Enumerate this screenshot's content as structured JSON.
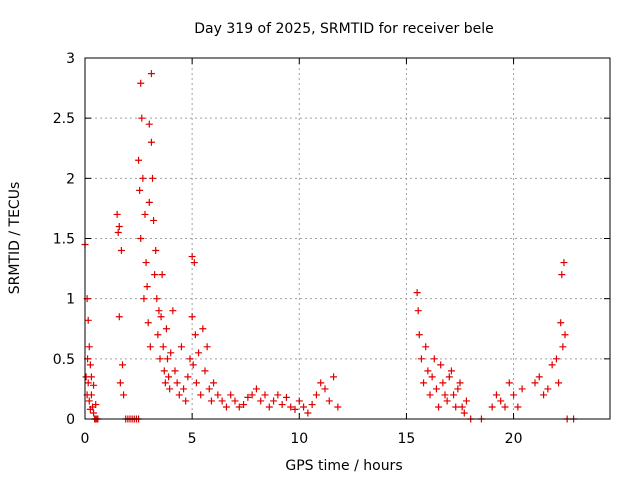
{
  "chart_data": {
    "type": "scatter",
    "title": "Day 319 of 2025, SRMTID for receiver bele",
    "xlabel": "GPS time / hours",
    "ylabel": "SRMTID / TECUs",
    "xlim": [
      0,
      24.5
    ],
    "ylim": [
      0,
      3
    ],
    "xticks": [
      0,
      5,
      10,
      15,
      20
    ],
    "xtick_labels": [
      "0",
      "5",
      "10",
      "15",
      "20"
    ],
    "yticks": [
      0,
      0.5,
      1,
      1.5,
      2,
      2.5,
      3
    ],
    "ytick_labels": [
      "0",
      "0.5",
      "1",
      "1.5",
      "2",
      "2.5",
      "3"
    ],
    "grid": true,
    "marker": "+",
    "color": "#e00000",
    "series": [
      {
        "name": "SRMTID",
        "x": [
          0.0,
          0.05,
          0.1,
          0.1,
          0.12,
          0.15,
          0.15,
          0.2,
          0.2,
          0.25,
          0.25,
          0.3,
          0.3,
          0.35,
          0.4,
          0.4,
          0.45,
          0.5,
          0.5,
          0.55,
          0.6,
          1.5,
          1.55,
          1.6,
          1.6,
          1.65,
          1.7,
          1.75,
          1.8,
          1.9,
          2.0,
          2.1,
          2.2,
          2.3,
          2.4,
          2.5,
          2.5,
          2.55,
          2.6,
          2.6,
          2.65,
          2.7,
          2.75,
          2.8,
          2.85,
          2.9,
          2.95,
          3.0,
          3.0,
          3.05,
          3.1,
          3.1,
          3.15,
          3.2,
          3.25,
          3.3,
          3.35,
          3.4,
          3.45,
          3.5,
          3.55,
          3.6,
          3.65,
          3.7,
          3.75,
          3.8,
          3.85,
          3.9,
          3.95,
          4.0,
          4.1,
          4.2,
          4.3,
          4.4,
          4.5,
          4.6,
          4.7,
          4.8,
          4.9,
          5.0,
          5.0,
          5.05,
          5.1,
          5.15,
          5.2,
          5.3,
          5.4,
          5.5,
          5.6,
          5.7,
          5.8,
          5.9,
          6.0,
          6.2,
          6.4,
          6.6,
          6.8,
          7.0,
          7.2,
          7.4,
          7.6,
          7.8,
          8.0,
          8.2,
          8.4,
          8.6,
          8.8,
          9.0,
          9.2,
          9.4,
          9.6,
          9.8,
          10.0,
          10.2,
          10.4,
          10.6,
          10.8,
          11.0,
          11.2,
          11.4,
          11.6,
          11.8,
          15.5,
          15.55,
          15.6,
          15.7,
          15.8,
          15.9,
          16.0,
          16.1,
          16.2,
          16.3,
          16.4,
          16.5,
          16.6,
          16.7,
          16.8,
          16.9,
          17.0,
          17.1,
          17.2,
          17.3,
          17.4,
          17.5,
          17.6,
          17.7,
          17.8,
          18.0,
          18.5,
          19.0,
          19.2,
          19.4,
          19.6,
          19.8,
          20.0,
          20.2,
          20.4,
          21.0,
          21.2,
          21.4,
          21.6,
          21.8,
          22.0,
          22.1,
          22.2,
          22.25,
          22.3,
          22.35,
          22.4,
          22.5,
          22.8
        ],
        "y": [
          1.45,
          0.35,
          1.0,
          0.2,
          0.5,
          0.3,
          0.82,
          0.15,
          0.6,
          0.45,
          0.08,
          0.35,
          0.2,
          0.1,
          0.05,
          0.28,
          0.0,
          0.0,
          0.12,
          0.0,
          0.0,
          1.7,
          1.55,
          1.6,
          0.85,
          0.3,
          1.4,
          0.45,
          0.2,
          0.0,
          0.0,
          0.0,
          0.0,
          0.0,
          0.0,
          0.0,
          2.15,
          1.9,
          2.79,
          1.5,
          2.5,
          2.0,
          1.0,
          1.7,
          1.3,
          1.1,
          0.8,
          1.8,
          2.45,
          0.6,
          2.87,
          2.3,
          2.0,
          1.65,
          1.2,
          1.4,
          1.0,
          0.7,
          0.9,
          0.5,
          0.85,
          1.2,
          0.6,
          0.4,
          0.3,
          0.75,
          0.5,
          0.35,
          0.25,
          0.55,
          0.9,
          0.4,
          0.3,
          0.2,
          0.6,
          0.25,
          0.15,
          0.35,
          0.5,
          1.35,
          0.85,
          0.45,
          1.3,
          0.7,
          0.3,
          0.55,
          0.2,
          0.75,
          0.4,
          0.6,
          0.25,
          0.15,
          0.3,
          0.2,
          0.15,
          0.1,
          0.2,
          0.15,
          0.1,
          0.12,
          0.18,
          0.2,
          0.25,
          0.15,
          0.2,
          0.1,
          0.15,
          0.2,
          0.12,
          0.18,
          0.1,
          0.08,
          0.15,
          0.1,
          0.05,
          0.12,
          0.2,
          0.3,
          0.25,
          0.15,
          0.35,
          0.1,
          1.05,
          0.9,
          0.7,
          0.5,
          0.3,
          0.6,
          0.4,
          0.2,
          0.35,
          0.5,
          0.25,
          0.1,
          0.45,
          0.3,
          0.2,
          0.15,
          0.35,
          0.4,
          0.2,
          0.1,
          0.25,
          0.3,
          0.1,
          0.05,
          0.15,
          0.0,
          0.0,
          0.1,
          0.2,
          0.15,
          0.1,
          0.3,
          0.2,
          0.1,
          0.25,
          0.3,
          0.35,
          0.2,
          0.25,
          0.45,
          0.5,
          0.3,
          0.8,
          1.2,
          0.6,
          1.3,
          0.7,
          0.0,
          0.0
        ]
      }
    ]
  }
}
